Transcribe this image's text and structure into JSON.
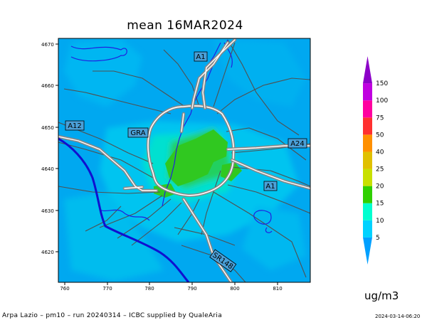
{
  "title": "mean 16MAR2024",
  "unit": "ug/m3",
  "credit": "Arpa Lazio – pm10 – run 20240314 – ICBC supplied by QualeAria",
  "run_timestamp": "2024-03-14-06:20",
  "axes": {
    "x_ticks": [
      "760",
      "770",
      "780",
      "790",
      "800",
      "810"
    ],
    "y_ticks": [
      "4670",
      "4660",
      "4650",
      "4640",
      "4630",
      "4620"
    ]
  },
  "road_labels": [
    "A1",
    "A12",
    "GRA",
    "A24",
    "A1",
    "SR148"
  ],
  "colorbar": {
    "levels": [
      "5",
      "10",
      "15",
      "20",
      "25",
      "40",
      "50",
      "75",
      "100",
      "150"
    ],
    "colors": [
      "#00a0ff",
      "#00d2ff",
      "#00ffd0",
      "#30d000",
      "#c8e000",
      "#e0c000",
      "#ff9000",
      "#ff3030",
      "#ff00a0",
      "#c000e0",
      "#8c00c8"
    ]
  },
  "colors": {
    "background_field": "#00a8f0",
    "medium_field": "#00c8f0",
    "high_field": "#00e6c8",
    "peak_field": "#30cc20",
    "coastline": "#1010d0",
    "roads": "#606060"
  }
}
